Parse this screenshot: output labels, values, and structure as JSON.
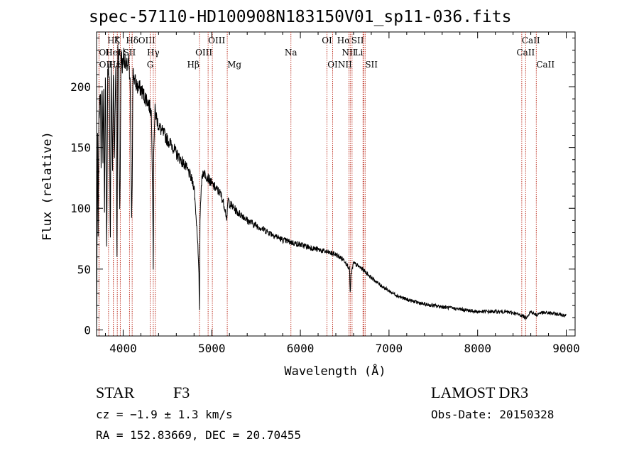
{
  "title": "spec-57110-HD100908N183150V01_sp11-036.fits",
  "footer": {
    "object_type": "STAR",
    "subclass": "F3",
    "survey": "LAMOST DR3",
    "redshift": "cz = −1.9 ± 1.3 km/s",
    "obs_date": "Obs-Date: 20150328",
    "coords": "RA = 152.83669, DEC =  20.70455"
  },
  "chart_data": {
    "type": "line",
    "title": "spec-57110-HD100908N183150V01_sp11-036.fits",
    "xlabel": "Wavelength (Å)",
    "ylabel": "Flux (relative)",
    "xlim": [
      3700,
      9100
    ],
    "ylim": [
      -5,
      245
    ],
    "xticks": [
      4000,
      5000,
      6000,
      7000,
      8000,
      9000
    ],
    "yticks": [
      0,
      50,
      100,
      150,
      200
    ],
    "xminor_step": 200,
    "yminor_step": 10,
    "grid": false,
    "series": [
      {
        "name": "flux",
        "x": [
          3700,
          3712,
          3718,
          3725,
          3735,
          3745,
          3752,
          3762,
          3772,
          3780,
          3790,
          3800,
          3815,
          3825,
          3835,
          3845,
          3855,
          3865,
          3880,
          3890,
          3900,
          3920,
          3930,
          3940,
          3950,
          3960,
          3968,
          3975,
          3990,
          4005,
          4030,
          4060,
          4080,
          4095,
          4102,
          4110,
          4130,
          4160,
          4200,
          4240,
          4280,
          4320,
          4335,
          4340,
          4345,
          4360,
          4385,
          4400,
          4430,
          4470,
          4500,
          4550,
          4600,
          4650,
          4700,
          4750,
          4800,
          4840,
          4855,
          4861,
          4867,
          4880,
          4900,
          4950,
          5000,
          5050,
          5100,
          5150,
          5167,
          5172,
          5183,
          5200,
          5250,
          5300,
          5350,
          5400,
          5500,
          5600,
          5700,
          5800,
          5900,
          6000,
          6100,
          6200,
          6300,
          6400,
          6500,
          6555,
          6563,
          6570,
          6600,
          6700,
          6800,
          6900,
          7000,
          7100,
          7200,
          7300,
          7400,
          7500,
          7600,
          7700,
          7800,
          7900,
          8000,
          8100,
          8200,
          8300,
          8400,
          8498,
          8542,
          8600,
          8662,
          8700,
          8800,
          8900,
          9000
        ],
        "y": [
          0,
          160,
          75,
          170,
          185,
          200,
          120,
          210,
          140,
          205,
          95,
          215,
          60,
          210,
          215,
          205,
          60,
          215,
          130,
          222,
          140,
          225,
          40,
          232,
          225,
          95,
          130,
          230,
          215,
          228,
          215,
          220,
          200,
          90,
          120,
          212,
          205,
          200,
          198,
          192,
          188,
          178,
          100,
          35,
          150,
          180,
          172,
          168,
          164,
          160,
          156,
          152,
          145,
          140,
          135,
          128,
          118,
          75,
          45,
          15,
          90,
          118,
          130,
          126,
          120,
          116,
          112,
          100,
          92,
          90,
          108,
          104,
          100,
          96,
          94,
          90,
          86,
          82,
          78,
          74,
          72,
          70,
          68,
          66,
          64,
          62,
          57,
          50,
          28,
          45,
          55,
          50,
          43,
          37,
          32,
          28,
          25,
          23,
          21,
          20,
          19,
          18,
          17,
          16,
          15,
          15,
          15,
          15,
          14,
          12,
          10,
          15,
          12,
          14,
          14,
          13,
          12
        ]
      }
    ],
    "lines": [
      {
        "label": "Hζ",
        "wave": 3889,
        "row": 1,
        "align": "middle"
      },
      {
        "label": "OII",
        "wave": 3727,
        "row": 2,
        "align": "start"
      },
      {
        "label": "OII",
        "wave": 3729,
        "row": 3,
        "align": "start"
      },
      {
        "label": "Hε",
        "wave": 3835,
        "row": 3,
        "align": "start"
      },
      {
        "label": "HeI",
        "wave": 3889,
        "row": 2,
        "align": "middle"
      },
      {
        "label": "K",
        "wave": 3934,
        "row": 1,
        "align": "middle"
      },
      {
        "label": "H",
        "wave": 3968,
        "row": 3,
        "align": "middle"
      },
      {
        "label": "Hδ",
        "wave": 4102,
        "row": 1,
        "align": "middle"
      },
      {
        "label": "SII",
        "wave": 4072,
        "row": 2,
        "align": "middle"
      },
      {
        "label": "OIII",
        "wave": 4363,
        "row": 1,
        "align": "end"
      },
      {
        "label": "Hγ",
        "wave": 4340,
        "row": 2,
        "align": "middle"
      },
      {
        "label": "G",
        "wave": 4305,
        "row": 3,
        "align": "middle"
      },
      {
        "label": "Hβ",
        "wave": 4861,
        "row": 3,
        "align": "end"
      },
      {
        "label": "OIII",
        "wave": 4959,
        "row": 1,
        "align": "start"
      },
      {
        "label": "OIII",
        "wave": 5007,
        "row": 2,
        "align": "end"
      },
      {
        "label": "Mg",
        "wave": 5175,
        "row": 3,
        "align": "start"
      },
      {
        "label": "Na",
        "wave": 5893,
        "row": 2,
        "align": "middle"
      },
      {
        "label": "OI",
        "wave": 6300,
        "row": 1,
        "align": "middle"
      },
      {
        "label": "OI",
        "wave": 6364,
        "row": 3,
        "align": "middle"
      },
      {
        "label": "Hα",
        "wave": 6563,
        "row": 1,
        "align": "end"
      },
      {
        "label": "NII",
        "wave": 6548,
        "row": 2,
        "align": "middle"
      },
      {
        "label": "NII",
        "wave": 6583,
        "row": 3,
        "align": "end"
      },
      {
        "label": "SII",
        "wave": 6716,
        "row": 1,
        "align": "end"
      },
      {
        "label": "Li",
        "wave": 6707,
        "row": 2,
        "align": "end"
      },
      {
        "label": "SII",
        "wave": 6731,
        "row": 3,
        "align": "start"
      },
      {
        "label": "CaII",
        "wave": 8498,
        "row": 1,
        "align": "start"
      },
      {
        "label": "CaII",
        "wave": 8542,
        "row": 2,
        "align": "middle"
      },
      {
        "label": "CaII",
        "wave": 8662,
        "row": 3,
        "align": "start"
      }
    ]
  }
}
